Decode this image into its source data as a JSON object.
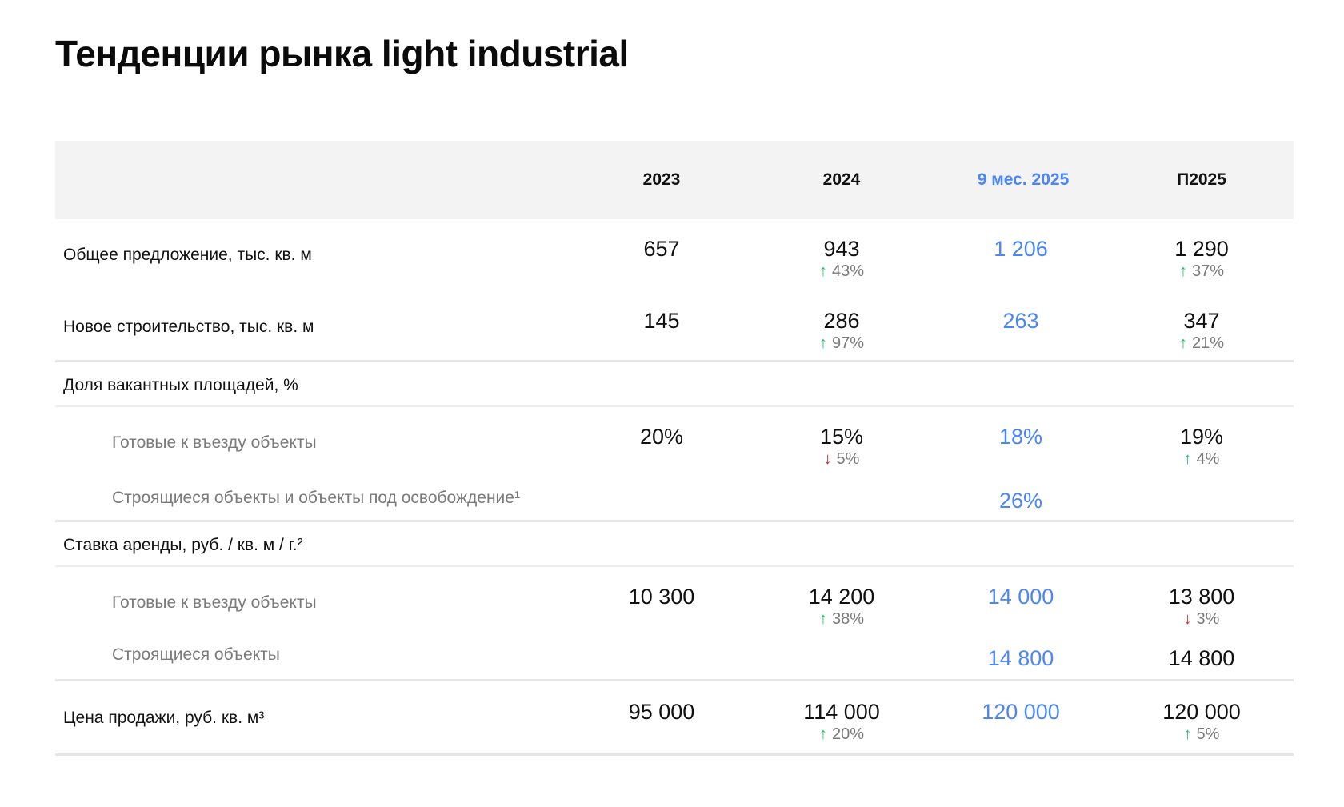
{
  "title": "Тенденции рынка light industrial",
  "columns": [
    "2023",
    "2024",
    "9 мес. 2025",
    "П2025"
  ],
  "accent_color": "#4a86f7",
  "up_color": "#1fc36a",
  "down_color": "#e5252b",
  "rows": {
    "supply": {
      "label": "Общее предложение, тыс. кв. м",
      "v2023": "657",
      "v2024": "943",
      "c2024": "43%",
      "v9m": "1 206",
      "vp": "1 290",
      "cp": "37%"
    },
    "construction": {
      "label": "Новое строительство, тыс. кв. м",
      "v2023": "145",
      "v2024": "286",
      "c2024": "97%",
      "v9m": "263",
      "vp": "347",
      "cp": "21%"
    },
    "vacancy": {
      "label": "Доля вакантных площадей, %"
    },
    "vacancy_ready": {
      "label": "Готовые к въезду объекты",
      "v2023": "20%",
      "v2024": "15%",
      "c2024": "5%",
      "v9m": "18%",
      "vp": "19%",
      "cp": "4%"
    },
    "vacancy_building": {
      "label": "Строящиеся объекты и объекты под освобождение¹",
      "v9m": "26%"
    },
    "rent": {
      "label": "Ставка аренды, руб. / кв. м / г.²"
    },
    "rent_ready": {
      "label": "Готовые к въезду объекты",
      "v2023": "10 300",
      "v2024": "14 200",
      "c2024": "38%",
      "v9m": "14 000",
      "vp": "13 800",
      "cp": "3%"
    },
    "rent_building": {
      "label": "Строящиеся объекты",
      "v9m": "14 800",
      "vp": "14 800"
    },
    "sale": {
      "label": "Цена продажи, руб. кв. м³",
      "v2023": "95 000",
      "v2024": "114 000",
      "c2024": "20%",
      "v9m": "120 000",
      "vp": "120 000",
      "cp": "5%"
    }
  },
  "icons": {
    "up": "arrow-up-icon",
    "down": "arrow-down-icon"
  }
}
